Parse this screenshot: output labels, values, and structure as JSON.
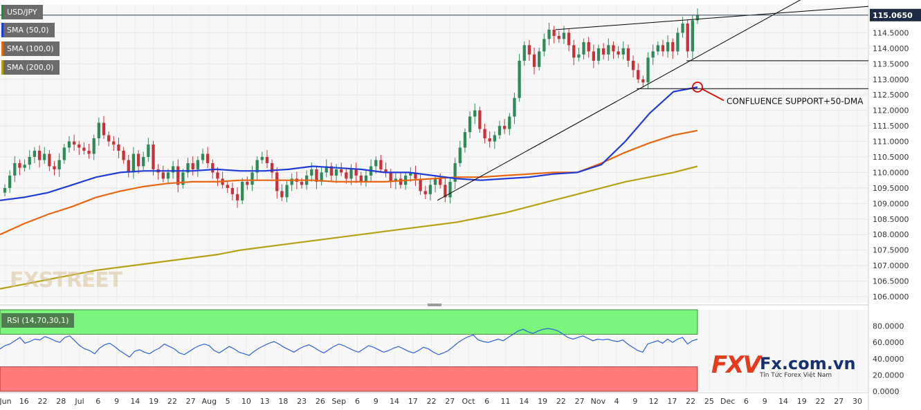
{
  "symbol": "USD/JPY",
  "indicators": [
    {
      "label": "SMA (50,0)",
      "color": "#1f3bd6"
    },
    {
      "label": "SMA (100,0)",
      "color": "#e8650f"
    },
    {
      "label": "SMA (200,0)",
      "color": "#b3a014"
    }
  ],
  "rsi_label": "RSI (14,70,30,1)",
  "annotation": "CONFLUENCE SUPPORT+50-DMA",
  "last_price_label": "115.0650",
  "watermark": "FXSTREET",
  "brand": {
    "logo": "FXV",
    "name": "Fx.com.vn",
    "tagline": "Tin Tức Forex Việt Nam"
  },
  "colors": {
    "bull": "#2e8b57",
    "bear": "#c8313a",
    "sma50": "#1f3bd6",
    "sma100": "#e8650f",
    "sma200": "#b3a014",
    "rsi": "#2b5fd9",
    "overbought": "#7cf57c",
    "oversold": "#ff7b7b"
  },
  "chart_data": [
    {
      "type": "candlestick",
      "title": "",
      "ylim": [
        105.8,
        115.4
      ],
      "y_ticks": [
        "106.0000",
        "106.5000",
        "107.0000",
        "107.5000",
        "108.0000",
        "108.5000",
        "109.0000",
        "109.5000",
        "110.0000",
        "110.5000",
        "111.0000",
        "111.5000",
        "112.0000",
        "112.5000",
        "113.0000",
        "113.5000",
        "114.0000",
        "114.5000"
      ],
      "x_ticks": [
        "Jun",
        "16",
        "22",
        "28",
        "Jul",
        "6",
        "9",
        "14",
        "19",
        "22",
        "27",
        "Aug",
        "5",
        "10",
        "13",
        "18",
        "23",
        "26",
        "Sep",
        "6",
        "9",
        "14",
        "17",
        "22",
        "27",
        "Oct",
        "6",
        "11",
        "14",
        "19",
        "22",
        "27",
        "Nov",
        "4",
        "9",
        "12",
        "17",
        "22",
        "25",
        "Dec",
        "6",
        "9",
        "14",
        "19",
        "22",
        "27",
        "30"
      ],
      "close": [
        109.5,
        109.9,
        110.3,
        110.15,
        110.25,
        110.5,
        110.7,
        110.4,
        110.6,
        110.2,
        110.1,
        110.4,
        110.8,
        111.0,
        110.9,
        110.8,
        110.7,
        110.6,
        111.1,
        111.6,
        111.2,
        111.0,
        110.9,
        110.7,
        110.4,
        110.0,
        110.6,
        110.2,
        110.5,
        110.9,
        110.1,
        110.0,
        109.8,
        110.0,
        110.2,
        109.6,
        110.0,
        110.3,
        110.1,
        110.4,
        110.6,
        110.3,
        110.0,
        109.8,
        109.6,
        109.5,
        109.3,
        109.1,
        109.7,
        109.6,
        110.0,
        110.4,
        110.5,
        110.3,
        110.0,
        109.4,
        109.2,
        109.6,
        109.8,
        109.7,
        109.6,
        109.9,
        110.1,
        109.7,
        110.0,
        110.2,
        109.9,
        110.1,
        110.0,
        109.8,
        110.1,
        109.9,
        109.7,
        109.9,
        110.2,
        110.4,
        110.1,
        110.0,
        109.7,
        109.8,
        109.6,
        109.9,
        110.0,
        109.8,
        109.4,
        109.3,
        109.6,
        109.8,
        109.6,
        109.2,
        109.7,
        110.3,
        110.8,
        111.3,
        111.8,
        112.0,
        111.4,
        111.1,
        111.0,
        111.2,
        111.5,
        111.4,
        111.8,
        112.4,
        113.6,
        114.1,
        113.8,
        113.4,
        113.9,
        114.3,
        114.6,
        114.4,
        114.3,
        114.5,
        114.1,
        113.7,
        113.8,
        114.2,
        113.9,
        113.6,
        114.0,
        113.8,
        114.1,
        113.9,
        113.8,
        114.0,
        113.6,
        113.3,
        113.0,
        112.9,
        113.7,
        113.9,
        114.1,
        113.9,
        114.2,
        113.9,
        114.5,
        114.8,
        113.9,
        114.9,
        115.07
      ],
      "sma50": [
        109.1,
        109.2,
        109.35,
        109.6,
        109.85,
        110.0,
        110.05,
        110.05,
        110.05,
        110.1,
        110.05,
        110.05,
        110.1,
        110.2,
        110.15,
        110.1,
        110.0,
        110.0,
        109.9,
        109.8,
        109.75,
        109.8,
        109.85,
        109.95,
        110.0,
        110.25,
        111.0,
        111.9,
        112.6,
        112.75
      ],
      "sma100": [
        108.0,
        108.35,
        108.65,
        108.9,
        109.2,
        109.4,
        109.55,
        109.65,
        109.7,
        109.7,
        109.75,
        109.75,
        109.75,
        109.75,
        109.7,
        109.7,
        109.7,
        109.75,
        109.8,
        109.85,
        109.85,
        109.9,
        109.95,
        110.0,
        110.0,
        110.3,
        110.65,
        110.95,
        111.2,
        111.35
      ],
      "sma200": [
        106.25,
        106.4,
        106.55,
        106.7,
        106.85,
        106.95,
        107.05,
        107.15,
        107.25,
        107.35,
        107.5,
        107.6,
        107.7,
        107.8,
        107.9,
        108.0,
        108.1,
        108.2,
        108.3,
        108.4,
        108.55,
        108.7,
        108.9,
        109.1,
        109.3,
        109.5,
        109.7,
        109.85,
        110.0,
        110.2
      ]
    },
    {
      "type": "line",
      "title": "",
      "ylim": [
        0,
        100
      ],
      "y_ticks": [
        "0.0000",
        "20.0000",
        "40.0000",
        "60.0000",
        "80.0000"
      ],
      "overbought": 70,
      "oversold": 30,
      "values": [
        52,
        56,
        58,
        62,
        66,
        59,
        61,
        64,
        63,
        67,
        65,
        62,
        60,
        66,
        68,
        62,
        56,
        52,
        50,
        46,
        53,
        57,
        59,
        55,
        50,
        46,
        42,
        49,
        51,
        48,
        46,
        50,
        53,
        58,
        55,
        52,
        47,
        45,
        49,
        53,
        56,
        58,
        56,
        50,
        47,
        51,
        55,
        52,
        48,
        46,
        44,
        49,
        53,
        56,
        59,
        61,
        58,
        54,
        51,
        48,
        52,
        55,
        57,
        54,
        50,
        47,
        51,
        55,
        58,
        56,
        53,
        50,
        48,
        52,
        56,
        54,
        51,
        48,
        50,
        53,
        55,
        52,
        49,
        47,
        50,
        54,
        52,
        48,
        45,
        47,
        50,
        55,
        60,
        64,
        67,
        69,
        63,
        61,
        60,
        62,
        64,
        62,
        66,
        70,
        74,
        76,
        73,
        71,
        74,
        76,
        77,
        76,
        74,
        70,
        66,
        64,
        66,
        68,
        65,
        62,
        64,
        63,
        64,
        62,
        61,
        63,
        58,
        54,
        50,
        48,
        58,
        60,
        62,
        59,
        64,
        60,
        64,
        66,
        58,
        62,
        64
      ]
    }
  ]
}
